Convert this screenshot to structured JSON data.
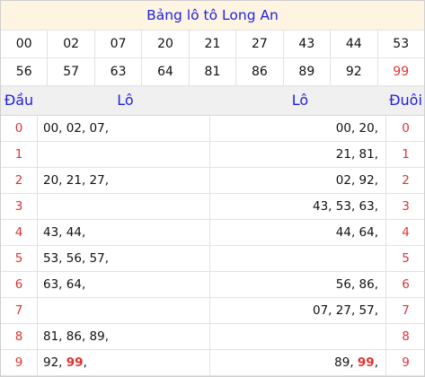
{
  "title": "Bảng lô tô Long An",
  "numbers_row1": [
    "00",
    "02",
    "07",
    "20",
    "21",
    "27",
    "43",
    "44",
    "53"
  ],
  "numbers_row2": [
    "56",
    "57",
    "63",
    "64",
    "81",
    "86",
    "89",
    "92",
    "99"
  ],
  "highlight_number": "99",
  "headers": {
    "dau": "Đầu",
    "lo_left": "Lô",
    "lo_right": "Lô",
    "duoi": "Đuôi"
  },
  "rows": [
    {
      "dau": "0",
      "lo_left": "00, 02, 07,",
      "lo_left_red": "",
      "lo_left_tail": "",
      "lo_right": "00, 20,",
      "lo_right_red": "",
      "lo_right_tail": "",
      "duoi": "0"
    },
    {
      "dau": "1",
      "lo_left": "",
      "lo_left_red": "",
      "lo_left_tail": "",
      "lo_right": "21, 81,",
      "lo_right_red": "",
      "lo_right_tail": "",
      "duoi": "1"
    },
    {
      "dau": "2",
      "lo_left": "20, 21, 27,",
      "lo_left_red": "",
      "lo_left_tail": "",
      "lo_right": "02, 92,",
      "lo_right_red": "",
      "lo_right_tail": "",
      "duoi": "2"
    },
    {
      "dau": "3",
      "lo_left": "",
      "lo_left_red": "",
      "lo_left_tail": "",
      "lo_right": "43, 53, 63,",
      "lo_right_red": "",
      "lo_right_tail": "",
      "duoi": "3"
    },
    {
      "dau": "4",
      "lo_left": "43, 44,",
      "lo_left_red": "",
      "lo_left_tail": "",
      "lo_right": "44, 64,",
      "lo_right_red": "",
      "lo_right_tail": "",
      "duoi": "4"
    },
    {
      "dau": "5",
      "lo_left": "53, 56, 57,",
      "lo_left_red": "",
      "lo_left_tail": "",
      "lo_right": "",
      "lo_right_red": "",
      "lo_right_tail": "",
      "duoi": "5"
    },
    {
      "dau": "6",
      "lo_left": "63, 64,",
      "lo_left_red": "",
      "lo_left_tail": "",
      "lo_right": "56, 86,",
      "lo_right_red": "",
      "lo_right_tail": "",
      "duoi": "6"
    },
    {
      "dau": "7",
      "lo_left": "",
      "lo_left_red": "",
      "lo_left_tail": "",
      "lo_right": "07, 27, 57,",
      "lo_right_red": "",
      "lo_right_tail": "",
      "duoi": "7"
    },
    {
      "dau": "8",
      "lo_left": "81, 86, 89,",
      "lo_left_red": "",
      "lo_left_tail": "",
      "lo_right": "",
      "lo_right_red": "",
      "lo_right_tail": "",
      "duoi": "8"
    },
    {
      "dau": "9",
      "lo_left": "92, ",
      "lo_left_red": "99",
      "lo_left_tail": ",",
      "lo_right": "89, ",
      "lo_right_red": "99",
      "lo_right_tail": ",",
      "duoi": "9"
    }
  ],
  "colors": {
    "title_bg": "#fdf5e1",
    "title_text": "#2222dd",
    "header_text": "#2222dd",
    "digit_red": "#e03333"
  }
}
